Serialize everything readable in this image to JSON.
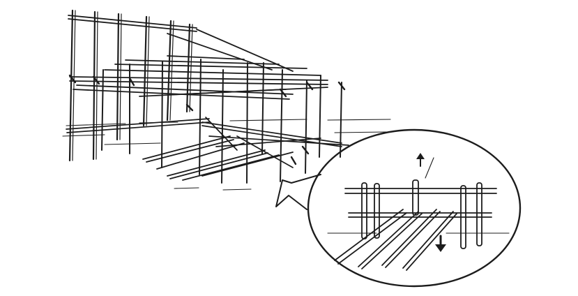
{
  "illustration": {
    "subject": "pole-scaffold-structure-with-magnified-detail",
    "icons": [
      "up-arrow-icon",
      "down-arrow-icon",
      "pointer-arrow-icon"
    ],
    "colors": {
      "ink": "#1c1c1c",
      "paper": "#ffffff"
    }
  }
}
